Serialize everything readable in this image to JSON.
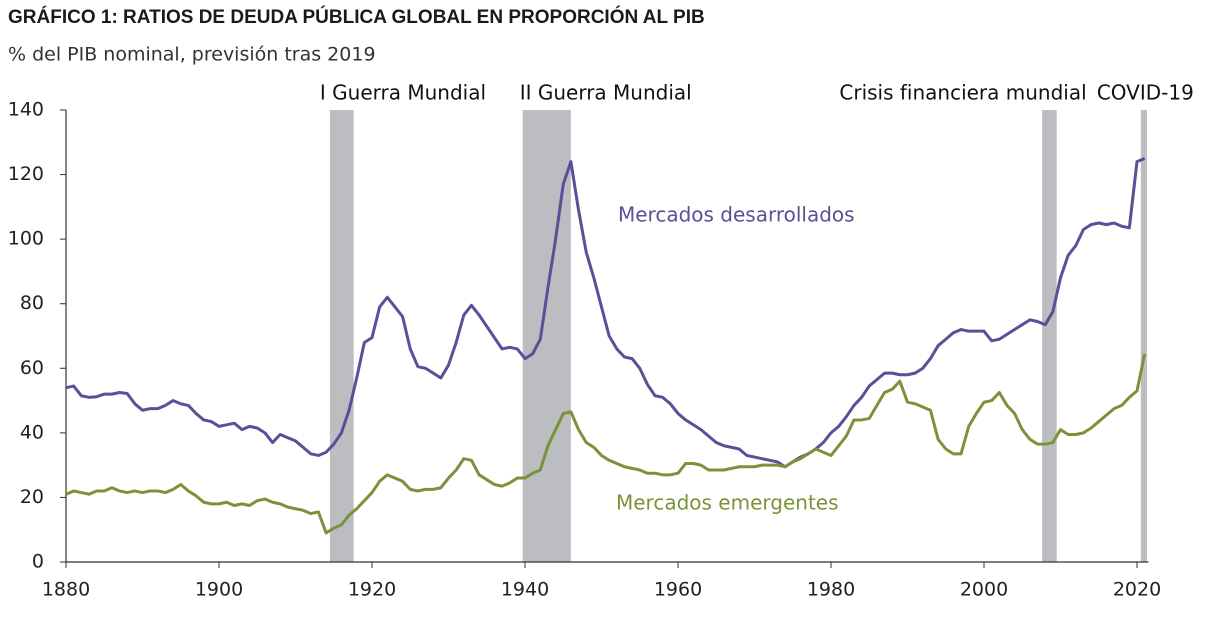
{
  "chart_data": {
    "type": "line",
    "title": "GRÁFICO 1: RATIOS DE DEUDA PÚBLICA GLOBAL EN PROPORCIÓN AL PIB",
    "subtitle": "% del PIB nominal, previsión tras 2019",
    "x": [
      1880,
      1881,
      1882,
      1883,
      1884,
      1885,
      1886,
      1887,
      1888,
      1889,
      1890,
      1891,
      1892,
      1893,
      1894,
      1895,
      1896,
      1897,
      1898,
      1899,
      1900,
      1901,
      1902,
      1903,
      1904,
      1905,
      1906,
      1907,
      1908,
      1909,
      1910,
      1911,
      1912,
      1913,
      1914,
      1915,
      1916,
      1917,
      1918,
      1919,
      1920,
      1921,
      1922,
      1923,
      1924,
      1925,
      1926,
      1927,
      1928,
      1929,
      1930,
      1931,
      1932,
      1933,
      1934,
      1935,
      1936,
      1937,
      1938,
      1939,
      1940,
      1941,
      1942,
      1943,
      1944,
      1945,
      1946,
      1947,
      1948,
      1949,
      1950,
      1951,
      1952,
      1953,
      1954,
      1955,
      1956,
      1957,
      1958,
      1959,
      1960,
      1961,
      1962,
      1963,
      1964,
      1965,
      1966,
      1967,
      1968,
      1969,
      1970,
      1971,
      1972,
      1973,
      1974,
      1975,
      1976,
      1977,
      1978,
      1979,
      1980,
      1981,
      1982,
      1983,
      1984,
      1985,
      1986,
      1987,
      1988,
      1989,
      1990,
      1991,
      1992,
      1993,
      1994,
      1995,
      1996,
      1997,
      1998,
      1999,
      2000,
      2001,
      2002,
      2003,
      2004,
      2005,
      2006,
      2007,
      2008,
      2009,
      2010,
      2011,
      2012,
      2013,
      2014,
      2015,
      2016,
      2017,
      2018,
      2019,
      2020,
      2021
    ],
    "series": [
      {
        "name": "Mercados desarrollados",
        "color": "#5b4f97",
        "values": [
          54,
          54.5,
          51.5,
          51,
          51.2,
          52,
          52,
          52.5,
          52.2,
          49,
          47,
          47.5,
          47.5,
          48.5,
          50,
          49,
          48.5,
          46,
          44,
          43.5,
          42,
          42.5,
          43,
          41,
          42,
          41.5,
          40,
          37,
          39.5,
          38.5,
          37.5,
          35.5,
          33.5,
          33,
          34,
          36.5,
          40,
          47,
          57,
          68,
          69.5,
          79,
          82,
          79,
          76,
          66,
          60.5,
          60,
          58.5,
          57,
          61,
          68,
          76.5,
          79.5,
          76.5,
          73,
          69.5,
          66,
          66.5,
          66,
          63,
          64.5,
          69,
          85,
          100,
          117,
          124,
          109,
          96,
          88,
          79,
          70,
          66,
          63.5,
          63,
          60,
          55,
          51.5,
          51,
          49,
          46,
          44,
          42.5,
          41,
          39,
          37,
          36,
          35.5,
          35,
          33,
          32.5,
          32,
          31.5,
          31,
          29.5,
          31,
          32.5,
          33.5,
          35,
          37,
          40,
          42,
          45,
          48.5,
          51,
          54.5,
          56.5,
          58.5,
          58.5,
          58,
          58,
          58.5,
          60,
          63,
          67,
          69,
          71,
          72,
          71.5,
          71.5,
          71.5,
          68.5,
          69,
          70.5,
          72,
          73.5,
          75,
          74.5,
          73.5,
          77.5,
          88,
          95,
          98,
          103,
          104.5,
          105,
          104.5,
          105,
          104,
          103.5,
          124,
          125
        ]
      },
      {
        "name": "Mercados emergentes",
        "color": "#7b9239",
        "values": [
          21,
          22,
          21.5,
          21,
          22,
          22,
          23,
          22,
          21.5,
          22,
          21.5,
          22,
          22,
          21.5,
          22.5,
          24,
          22,
          20.5,
          18.5,
          18,
          18,
          18.5,
          17.5,
          18,
          17.5,
          19,
          19.5,
          18.5,
          18,
          17,
          16.5,
          16,
          15,
          15.5,
          9,
          10.5,
          11.5,
          14.5,
          16.5,
          19,
          21.5,
          25,
          27,
          26,
          25,
          22.5,
          22,
          22.5,
          22.5,
          23,
          26,
          28.5,
          32,
          31.5,
          27,
          25.5,
          24,
          23.5,
          24.5,
          26,
          26,
          27.5,
          28.5,
          36,
          41,
          46,
          46.5,
          41,
          37,
          35.5,
          33,
          31.5,
          30.5,
          29.5,
          29,
          28.5,
          27.5,
          27.5,
          27,
          27,
          27.5,
          30.5,
          30.5,
          30,
          28.5,
          28.5,
          28.5,
          29,
          29.5,
          29.5,
          29.5,
          30,
          30,
          30,
          29.5,
          31,
          32,
          33.5,
          35,
          34,
          33,
          36,
          39,
          44,
          44,
          44.5,
          48.5,
          52.5,
          53.5,
          56,
          49.5,
          49,
          48,
          47,
          38,
          35,
          33.5,
          33.5,
          42,
          46,
          49.5,
          50,
          52.5,
          48.5,
          46,
          41,
          38,
          36.5,
          36.5,
          37,
          41,
          39.5,
          39.5,
          40,
          41.5,
          43.5,
          45.5,
          47.5,
          48.5,
          51,
          53,
          64.5
        ]
      }
    ],
    "shaded_periods": [
      {
        "label": "I Guerra Mundial",
        "start": 1914.5,
        "end": 1917.6
      },
      {
        "label": "II Guerra Mundial",
        "start": 1939.7,
        "end": 1946
      },
      {
        "label": "Crisis financiera mundial",
        "start": 2007.6,
        "end": 2009.5
      },
      {
        "label": "COVID-19",
        "start": 2020.5,
        "end": 2021.3
      }
    ],
    "shade_color": "#bcbdc0",
    "xlim": [
      1880,
      2021.5
    ],
    "xticks": [
      1880,
      1900,
      1920,
      1940,
      1960,
      1980,
      2000,
      2020
    ],
    "ylim": [
      0,
      140
    ],
    "yticks": [
      0,
      20,
      40,
      60,
      80,
      100,
      120,
      140
    ],
    "grid": false
  }
}
